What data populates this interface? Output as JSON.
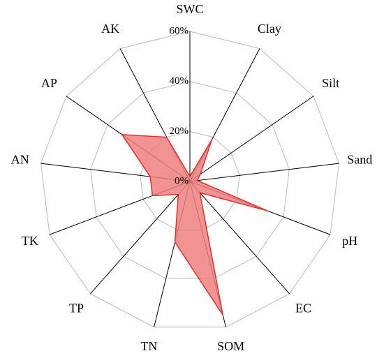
{
  "chart_data": {
    "type": "radar",
    "categories": [
      "SWC",
      "Clay",
      "Silt",
      "Sand",
      "pH",
      "EC",
      "SOM",
      "TN",
      "TP",
      "TK",
      "AN",
      "AP",
      "AK"
    ],
    "series": [
      {
        "color": "#f08080",
        "values": [
          2,
          19,
          5,
          3,
          33,
          6,
          55,
          25,
          7,
          16,
          16,
          33,
          20
        ]
      }
    ],
    "ylim": [
      0,
      60
    ],
    "yticks": [
      {
        "value": 0,
        "label": "0%"
      },
      {
        "value": 20,
        "label": "20%"
      },
      {
        "value": 40,
        "label": "40%"
      },
      {
        "value": 60,
        "label": "60%"
      }
    ]
  }
}
